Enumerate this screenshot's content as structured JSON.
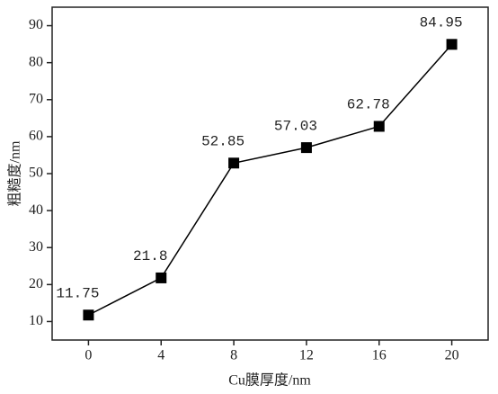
{
  "chart_data": {
    "type": "line",
    "x": [
      0,
      4,
      8,
      12,
      16,
      20
    ],
    "series": [
      {
        "color": "#000000",
        "values": [
          11.75,
          21.8,
          52.85,
          57.03,
          62.78,
          84.95
        ]
      }
    ],
    "xlabel": "Cu膜厚度/nm",
    "ylabel": "粗糙度/nm",
    "xlim": [
      -2,
      22
    ],
    "xticks": [
      0,
      4,
      8,
      12,
      16,
      20
    ],
    "ylim": [
      5,
      95
    ],
    "yticks": [
      10,
      20,
      30,
      40,
      50,
      60,
      70,
      80,
      90
    ],
    "marker": "square",
    "grid": false
  }
}
